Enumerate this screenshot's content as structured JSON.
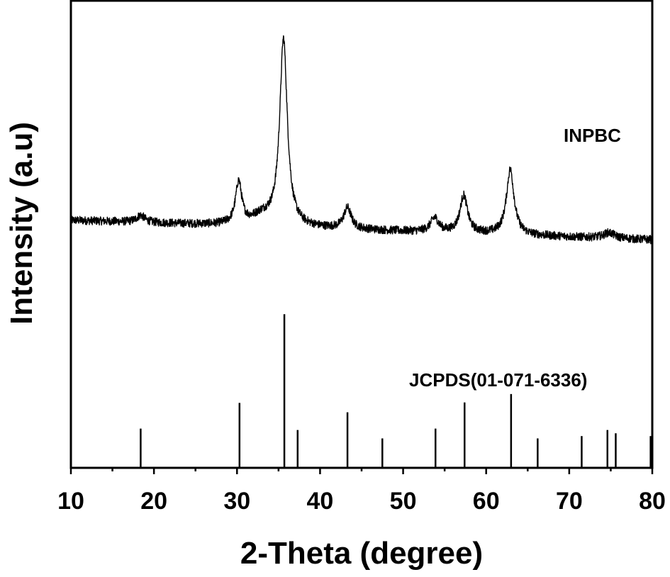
{
  "chart_data": {
    "type": "line",
    "xlabel": "2-Theta (degree)",
    "ylabel": "Intensity (a.u)",
    "xlim": [
      10,
      80
    ],
    "ylim": [
      0,
      100
    ],
    "xticks": [
      10,
      20,
      30,
      40,
      50,
      60,
      70,
      80
    ],
    "xtick_labels": [
      "10",
      "20",
      "30",
      "40",
      "50",
      "60",
      "70",
      "80"
    ],
    "grid": false,
    "series": [
      {
        "name": "INPBC",
        "kind": "xrd-pattern",
        "baseline": 53.0,
        "baseline_slope": -0.06,
        "noise": 0.9,
        "peaks": [
          {
            "x": 18.4,
            "height": 1.5,
            "width": 0.6
          },
          {
            "x": 30.2,
            "height": 9.0,
            "width": 0.45
          },
          {
            "x": 33.0,
            "height": 2.0,
            "width": 1.5
          },
          {
            "x": 35.6,
            "height": 40.0,
            "width": 0.55
          },
          {
            "x": 43.3,
            "height": 4.5,
            "width": 0.55
          },
          {
            "x": 53.8,
            "height": 3.0,
            "width": 0.6
          },
          {
            "x": 57.3,
            "height": 8.0,
            "width": 0.55
          },
          {
            "x": 62.9,
            "height": 14.0,
            "width": 0.55
          },
          {
            "x": 74.8,
            "height": 1.2,
            "width": 0.8
          }
        ]
      },
      {
        "name": "JCPDS(01-071-6336)",
        "kind": "reference-sticks",
        "x": [
          18.4,
          30.3,
          35.7,
          37.3,
          43.3,
          47.5,
          53.9,
          57.4,
          63.0,
          66.2,
          71.5,
          74.6,
          75.6,
          79.8
        ],
        "values": [
          8.4,
          13.9,
          32.9,
          8.1,
          11.9,
          6.3,
          8.4,
          14.0,
          15.8,
          6.3,
          6.8,
          8.1,
          7.4,
          6.8
        ]
      }
    ]
  }
}
